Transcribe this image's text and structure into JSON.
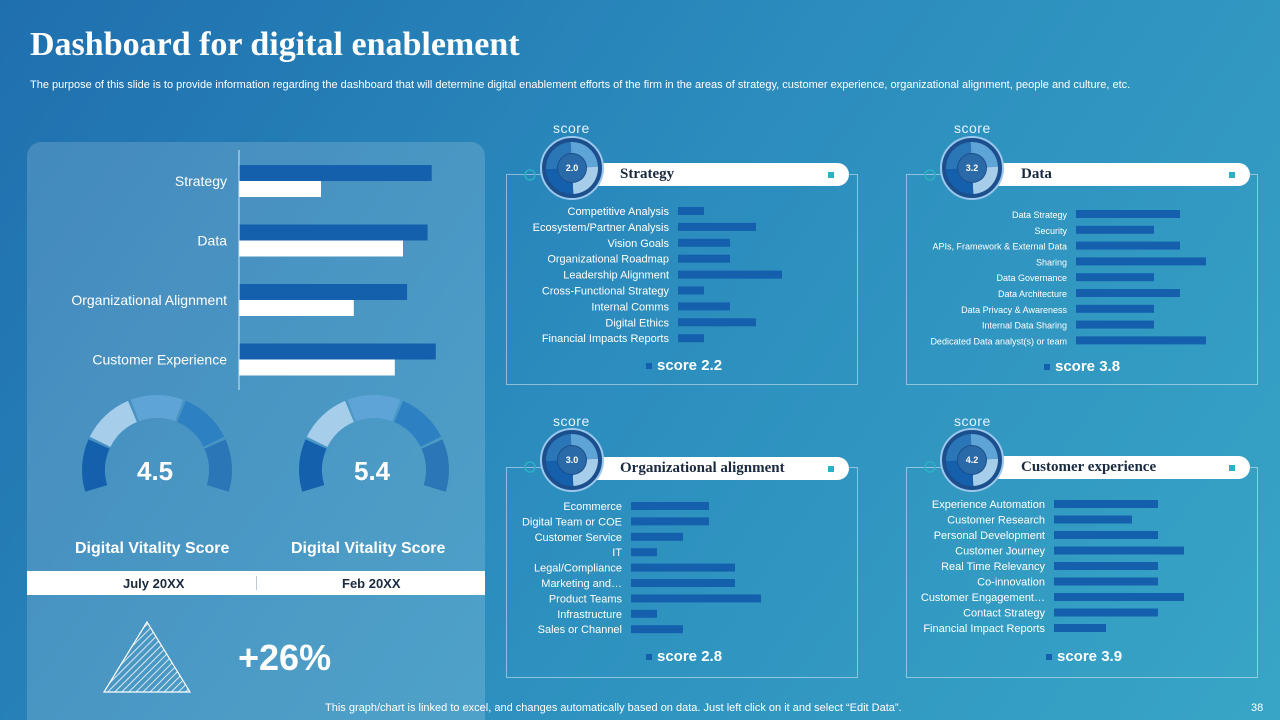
{
  "page": {
    "title": "Dashboard for digital enablement",
    "subtitle": "The purpose of this slide is to provide information regarding the dashboard that will determine digital enablement efforts of the firm in the areas of strategy, customer experience, organizational alignment, people and culture, etc.",
    "footer_note": "This graph/chart is linked to excel,  and changes automatically based on data. Just left click on it and select “Edit Data”.",
    "page_number": "38"
  },
  "colors": {
    "accent_dark": "#1560ad",
    "accent_white": "#ffffff",
    "teal": "#2bb0c4"
  },
  "vitality": {
    "gauges": [
      {
        "value": "4.5",
        "label": "Digital Vitality  Score",
        "period": "July 20XX"
      },
      {
        "value": "5.4",
        "label": "Digital Vitality  Score",
        "period": "Feb 20XX"
      }
    ],
    "change": "+26%"
  },
  "chart_data": [
    {
      "type": "bar",
      "orientation": "horizontal",
      "title": "",
      "categories": [
        "Strategy",
        "Data",
        "Organizational Alignment",
        "Customer Experience"
      ],
      "series": [
        {
          "name": "July 20XX",
          "color": "#1560ad",
          "values": [
            4.7,
            4.6,
            4.1,
            4.8
          ]
        },
        {
          "name": "Feb 20XX",
          "color": "#ffffff",
          "values": [
            2.0,
            4.0,
            2.8,
            3.8
          ]
        }
      ],
      "xlim": [
        0,
        5
      ]
    },
    {
      "type": "bar",
      "orientation": "horizontal",
      "title": "Strategy",
      "score_caption": "score",
      "gauge_value": "2.0",
      "total_label": "score 2.2",
      "categories": [
        "Competitive Analysis",
        "Ecosystem/Partner Analysis",
        "Vision Goals",
        "Organizational Roadmap",
        "Leadership Alignment",
        "Cross-Functional Strategy",
        "Internal Comms",
        "Digital Ethics",
        "Financial Impacts Reports"
      ],
      "values": [
        1.0,
        3.0,
        2.0,
        2.0,
        4.0,
        1.0,
        2.0,
        3.0,
        1.0
      ],
      "xlim": [
        0,
        5
      ]
    },
    {
      "type": "bar",
      "orientation": "horizontal",
      "title": "Data",
      "score_caption": "score",
      "gauge_value": "3.2",
      "total_label": "score 3.8",
      "categories": [
        "Data Strategy",
        "Security",
        "APIs, Framework & External Data",
        "Sharing",
        "Data Governance",
        "Data Architecture",
        "Data Privacy & Awareness",
        "Internal Data Sharing",
        "Dedicated Data analyst(s) or team"
      ],
      "values": [
        4.0,
        3.0,
        4.0,
        5.0,
        3.0,
        4.0,
        3.0,
        3.0,
        5.0
      ],
      "xlim": [
        0,
        5
      ]
    },
    {
      "type": "bar",
      "orientation": "horizontal",
      "title": "Organizational alignment",
      "score_caption": "score",
      "gauge_value": "3.0",
      "total_label": "score 2.8",
      "categories": [
        "Ecommerce",
        "Digital Team or COE",
        "Customer Service",
        "IT",
        "Legal/Compliance",
        "Marketing and…",
        "Product Teams",
        "Infrastructure",
        "Sales or Channel"
      ],
      "values": [
        3.0,
        3.0,
        2.0,
        1.0,
        4.0,
        4.0,
        5.0,
        1.0,
        2.0
      ],
      "xlim": [
        0,
        5
      ]
    },
    {
      "type": "bar",
      "orientation": "horizontal",
      "title": "Customer experience",
      "score_caption": "score",
      "gauge_value": "4.2",
      "total_label": "score 3.9",
      "categories": [
        "Experience Automation",
        "Customer Research",
        "Personal Development",
        "Customer Journey",
        "Real Time Relevancy",
        "Co-innovation",
        "Customer Engagement…",
        "Contact Strategy",
        "Financial Impact Reports"
      ],
      "values": [
        4.0,
        3.0,
        4.0,
        5.0,
        4.0,
        4.0,
        5.0,
        4.0,
        2.0
      ],
      "xlim": [
        0,
        5
      ]
    }
  ]
}
